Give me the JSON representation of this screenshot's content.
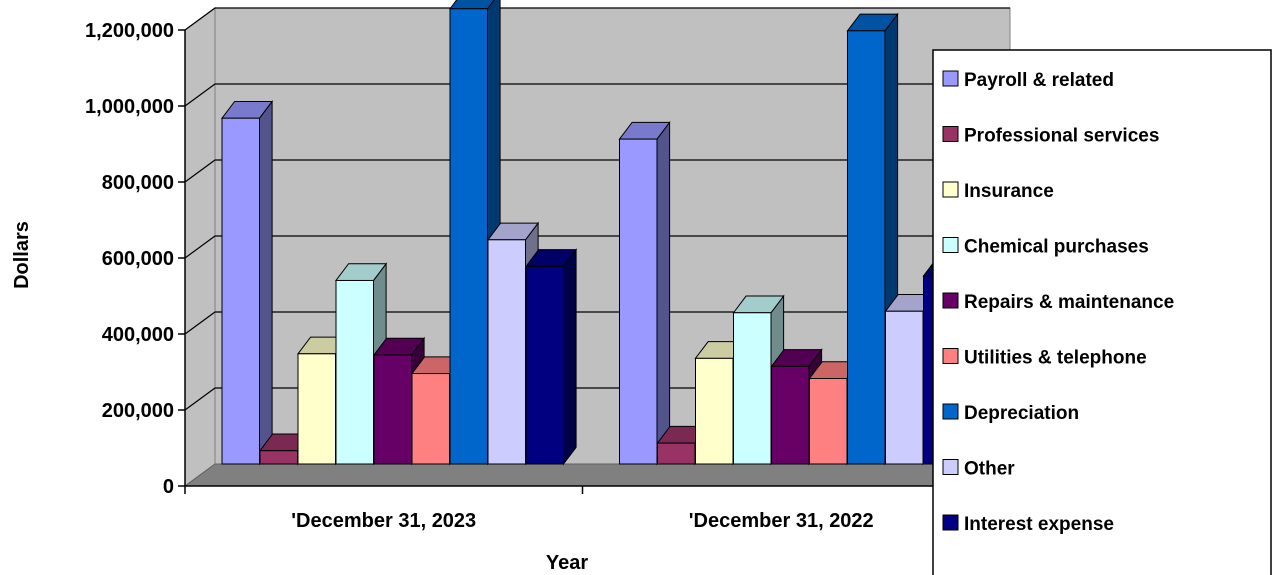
{
  "chart_data": {
    "type": "bar",
    "title": "",
    "xlabel": "Year",
    "ylabel": "Dollars",
    "ylim": [
      0,
      1200000
    ],
    "yticks": [
      0,
      200000,
      400000,
      600000,
      800000,
      1000000,
      1200000
    ],
    "ytick_labels": [
      "0",
      "200,000",
      "400,000",
      "600,000",
      "800,000",
      "1,000,000",
      "1,200,000"
    ],
    "categories": [
      "'December 31, 2023",
      "'December 31, 2022"
    ],
    "grid": true,
    "legend_position": "right",
    "series": [
      {
        "name": "Payroll & related",
        "color": "#9999ff",
        "values": [
          910000,
          855000
        ]
      },
      {
        "name": "Professional services",
        "color": "#993366",
        "values": [
          35000,
          55000
        ]
      },
      {
        "name": "Insurance",
        "color": "#ffffcc",
        "values": [
          290000,
          278000
        ]
      },
      {
        "name": "Chemical purchases",
        "color": "#ccffff",
        "values": [
          483000,
          398000
        ]
      },
      {
        "name": "Repairs & maintenance",
        "color": "#660066",
        "values": [
          287000,
          257000
        ]
      },
      {
        "name": "Utilities & telephone",
        "color": "#ff8080",
        "values": [
          238000,
          225000
        ]
      },
      {
        "name": "Depreciation",
        "color": "#0066cc",
        "values": [
          1198000,
          1140000
        ]
      },
      {
        "name": "Other",
        "color": "#ccccff",
        "values": [
          590000,
          402000
        ]
      },
      {
        "name": "Interest expense",
        "color": "#000080",
        "values": [
          520000,
          495000
        ]
      }
    ]
  }
}
